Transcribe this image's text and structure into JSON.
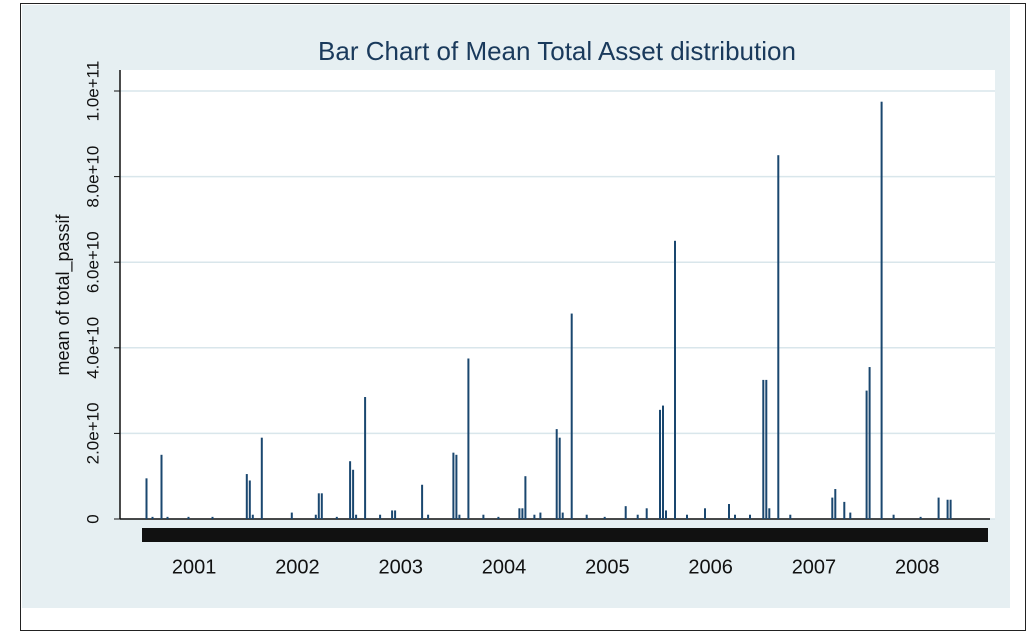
{
  "chart_data": {
    "type": "bar",
    "title": "Bar Chart of Mean Total Asset distribution",
    "y_label": "mean of total_passif",
    "color": "#1a476f",
    "ylim": [
      0,
      100000000000.0
    ],
    "yticks": [
      0,
      {
        "value": 20000000000.0,
        "label": "2.0e+10"
      },
      {
        "value": 40000000000.0,
        "label": "4.0e+10"
      },
      {
        "value": 60000000000.0,
        "label": "6.0e+10"
      },
      {
        "value": 80000000000.0,
        "label": "8.0e+10"
      },
      {
        "value": 100000000000.0,
        "label": "1.0e+11"
      }
    ],
    "grid": true,
    "groups": [
      {
        "label": "2001",
        "values": [
          0,
          9500000000.0,
          0,
          500000000.0,
          0,
          0,
          15000000000.0,
          0,
          500000000.0,
          0,
          0,
          0,
          0,
          0,
          0,
          500000000.0,
          0,
          0,
          0,
          0,
          0,
          0,
          0,
          500000000.0,
          0,
          0,
          0,
          0,
          0,
          0,
          0,
          0,
          0,
          0
        ]
      },
      {
        "label": "2002",
        "values": [
          10500000000.0,
          9000000000.0,
          1000000000.0,
          0,
          0,
          19000000000.0,
          0,
          0,
          0,
          0,
          0,
          0,
          0,
          0,
          0,
          1500000000.0,
          0,
          0,
          0,
          0,
          0,
          0,
          0,
          1000000000.0,
          6000000000.0,
          6000000000.0,
          0,
          0,
          0,
          0,
          500000000.0,
          0,
          0,
          0
        ]
      },
      {
        "label": "2003",
        "values": [
          13500000000.0,
          11500000000.0,
          1000000000.0,
          0,
          0,
          28500000000.0,
          0,
          0,
          0,
          0,
          1000000000.0,
          0,
          0,
          0,
          2000000000.0,
          2000000000.0,
          0,
          0,
          0,
          0,
          0,
          0,
          0,
          0,
          8000000000.0,
          0,
          1000000000.0,
          0,
          0,
          0,
          0,
          0,
          0,
          0
        ]
      },
      {
        "label": "2004",
        "values": [
          15500000000.0,
          15000000000.0,
          1000000000.0,
          0,
          0,
          37500000000.0,
          0,
          0,
          0,
          0,
          1000000000.0,
          0,
          0,
          0,
          0,
          500000000.0,
          0,
          0,
          0,
          0,
          0,
          0,
          2500000000.0,
          2500000000.0,
          10000000000.0,
          0,
          0,
          1000000000.0,
          0,
          1500000000.0,
          0,
          0,
          0,
          0
        ]
      },
      {
        "label": "2005",
        "values": [
          21000000000.0,
          19000000000.0,
          1500000000.0,
          0,
          0,
          48000000000.0,
          0,
          0,
          0,
          0,
          1000000000.0,
          0,
          0,
          0,
          0,
          0,
          500000000.0,
          0,
          0,
          0,
          0,
          0,
          0,
          3000000000.0,
          0,
          0,
          0,
          1000000000.0,
          0,
          0,
          2500000000.0,
          0,
          0,
          0
        ]
      },
      {
        "label": "2006",
        "values": [
          25500000000.0,
          26500000000.0,
          2000000000.0,
          0,
          0,
          65000000000.0,
          0,
          0,
          0,
          1000000000.0,
          0,
          0,
          0,
          0,
          0,
          2500000000.0,
          0,
          0,
          0,
          0,
          0,
          0,
          0,
          3500000000.0,
          0,
          1000000000.0,
          0,
          0,
          0,
          0,
          1000000000.0,
          0,
          0,
          0
        ]
      },
      {
        "label": "2007",
        "values": [
          32500000000.0,
          32500000000.0,
          2500000000.0,
          0,
          0,
          85000000000.0,
          0,
          0,
          0,
          1000000000.0,
          0,
          0,
          0,
          0,
          0,
          0,
          0,
          0,
          0,
          0,
          0,
          0,
          0,
          5000000000.0,
          7000000000.0,
          0,
          0,
          4000000000.0,
          0,
          1500000000.0,
          0,
          0,
          0,
          0
        ]
      },
      {
        "label": "2008",
        "values": [
          30000000000.0,
          35500000000.0,
          0,
          0,
          0,
          97500000000.0,
          0,
          0,
          0,
          1000000000.0,
          0,
          0,
          0,
          0,
          0,
          0,
          0,
          0,
          500000000.0,
          0,
          0,
          0,
          0,
          0,
          5000000000.0,
          0,
          0,
          4500000000.0,
          4500000000.0,
          0,
          0,
          0,
          0,
          0
        ]
      }
    ]
  }
}
